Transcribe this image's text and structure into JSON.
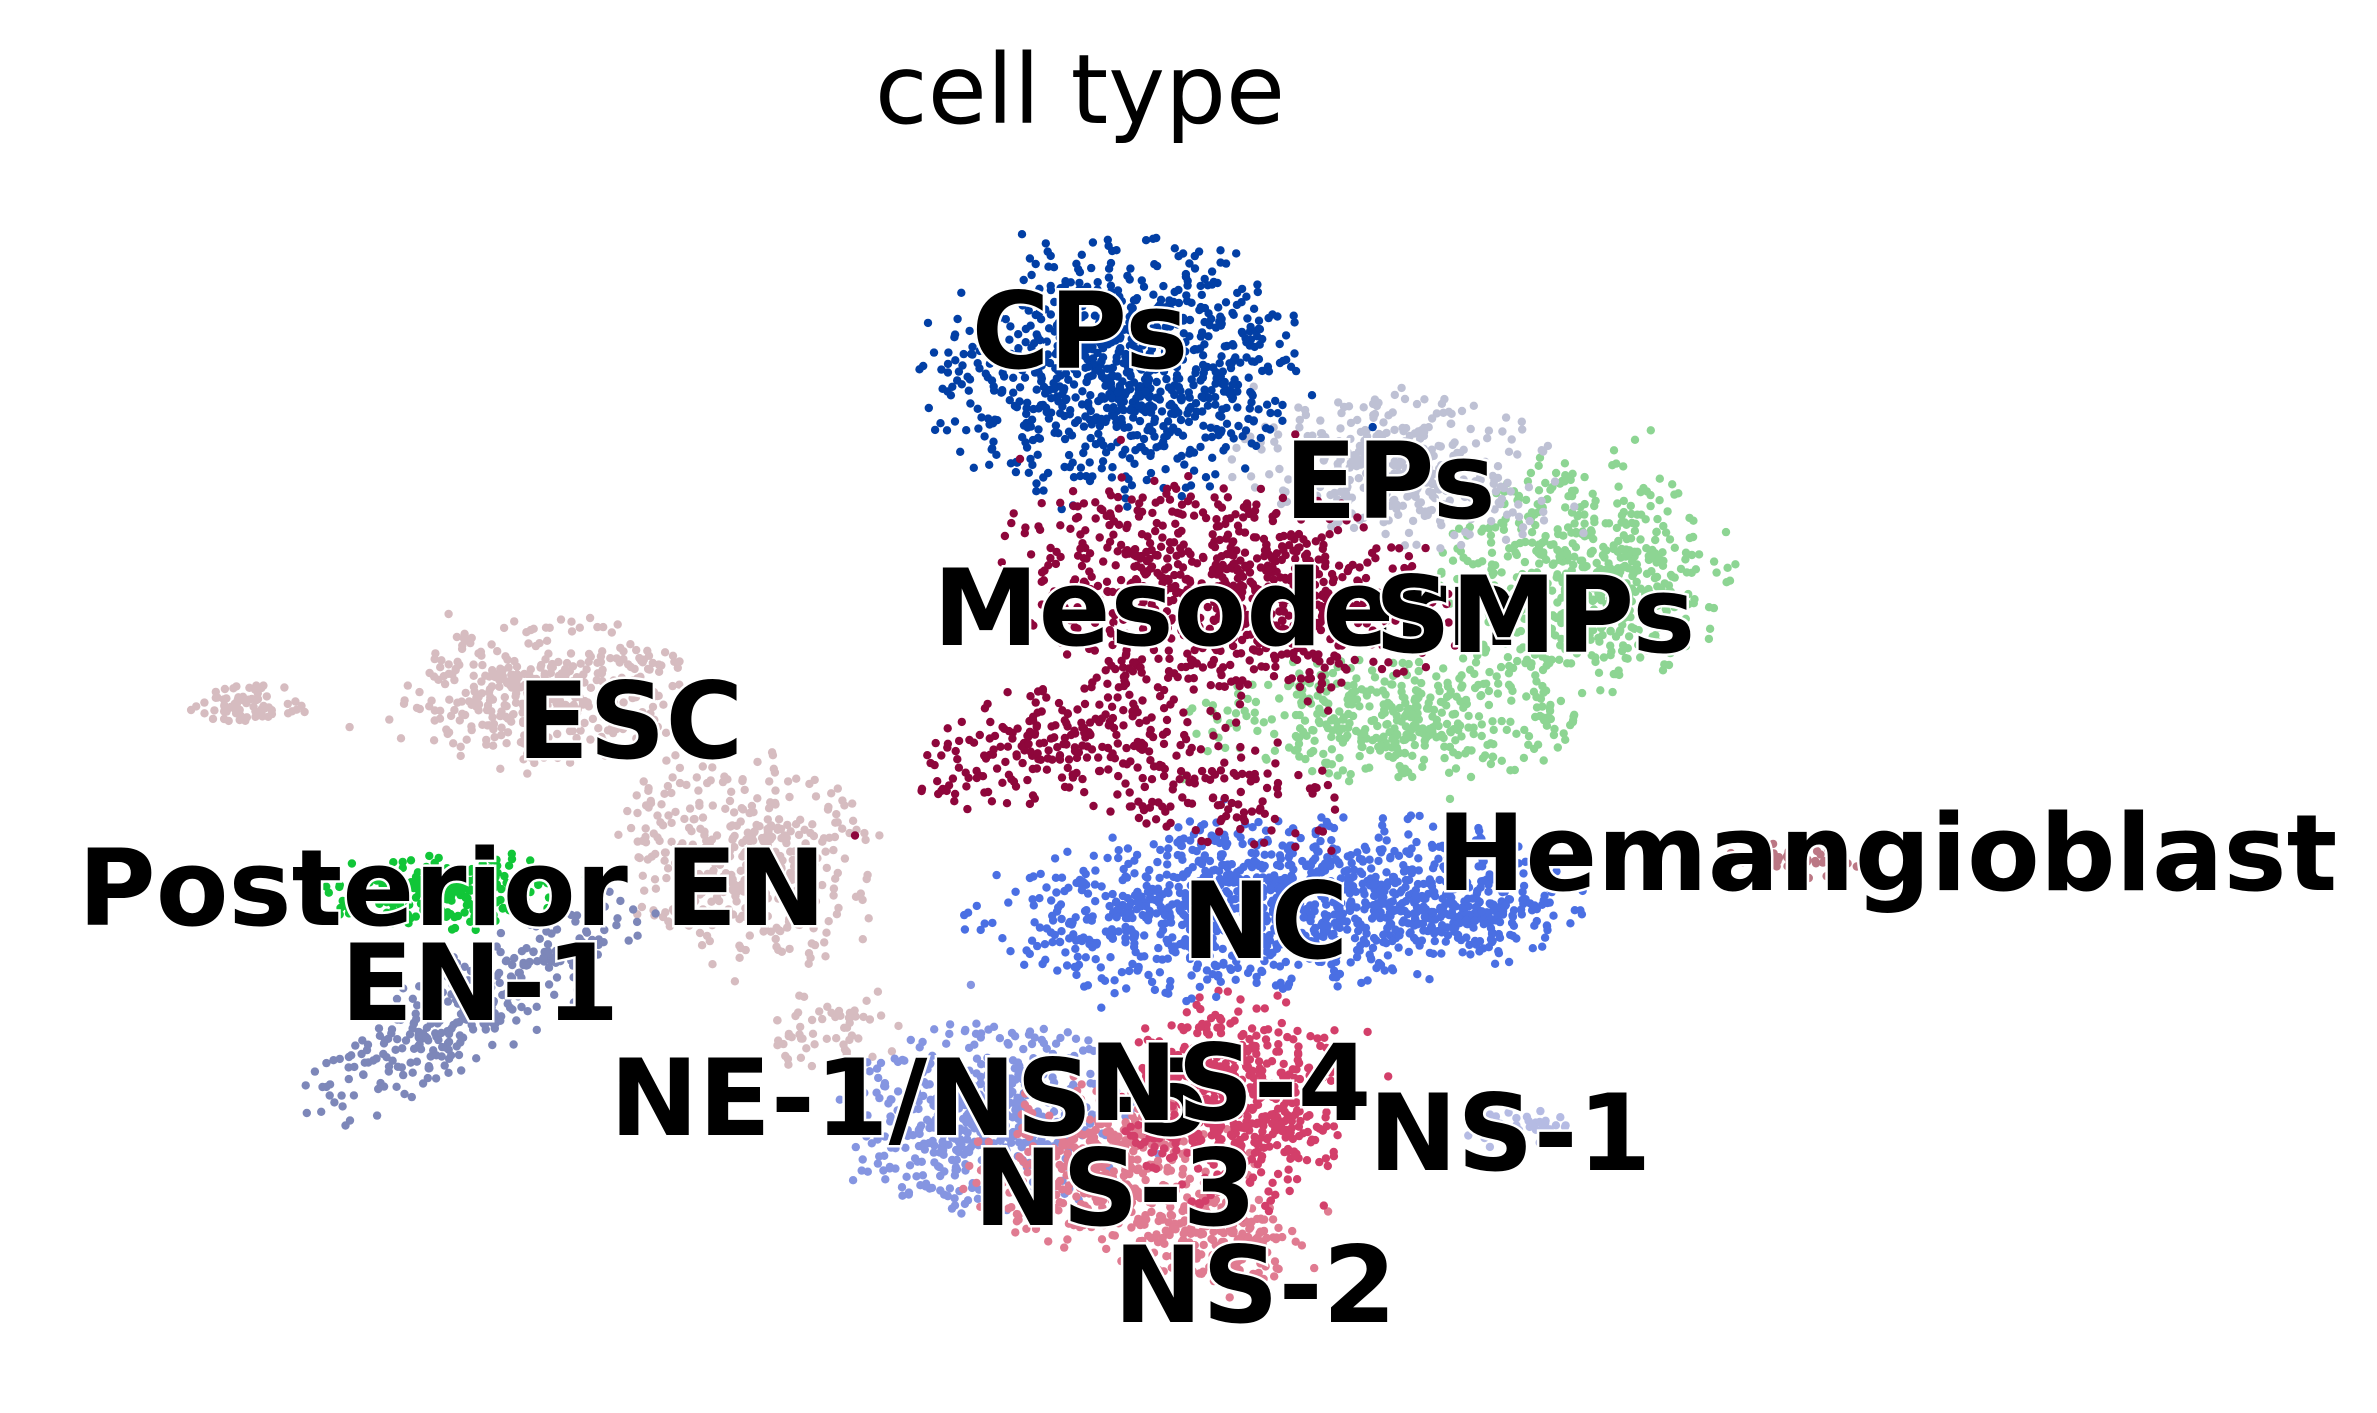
{
  "chart_data": {
    "type": "scatter",
    "title": "cell type",
    "xlabel": "",
    "ylabel": "",
    "grid": false,
    "axes_visible": false,
    "legend": "on data",
    "clusters": [
      {
        "name": "CPs",
        "color": "#023fa5"
      },
      {
        "name": "EPs",
        "color": "#bec1d4"
      },
      {
        "name": "Mesoderm",
        "color": "#8e063b"
      },
      {
        "name": "SMPs",
        "color": "#8dd593"
      },
      {
        "name": "ESC",
        "color": "#d6bcc0"
      },
      {
        "name": "Posterior EN",
        "color": "#11c638"
      },
      {
        "name": "EN-1",
        "color": "#7d87b9"
      },
      {
        "name": "Hemangioblast",
        "color": "#bb7784"
      },
      {
        "name": "NC",
        "color": "#4a6fe3"
      },
      {
        "name": "NE-1/NS-5",
        "color": "#8595e1"
      },
      {
        "name": "NS-4",
        "color": "#d33f6a"
      },
      {
        "name": "NS-3",
        "color": "#e07b91"
      },
      {
        "name": "NS-2",
        "color": "#e07b91"
      },
      {
        "name": "NS-1",
        "color": "#b5bbe3"
      }
    ]
  }
}
